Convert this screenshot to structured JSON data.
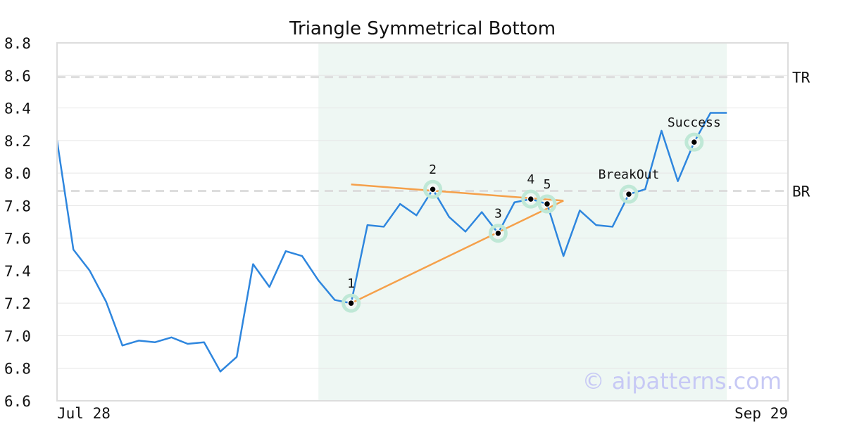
{
  "chart_data": {
    "type": "line",
    "title": "Triangle Symmetrical Bottom",
    "xlabel": "",
    "ylabel": "",
    "x_start_label": "Jul 28",
    "x_end_label": "Sep 29",
    "ylim": [
      6.6,
      8.8
    ],
    "yticks": [
      "6.6",
      "6.8",
      "7.0",
      "7.2",
      "7.4",
      "7.6",
      "7.8",
      "8.0",
      "8.2",
      "8.4",
      "8.6",
      "8.8"
    ],
    "grid": true,
    "series": [
      {
        "color": "#2e86de",
        "values": [
          8.2,
          7.53,
          7.4,
          7.21,
          6.94,
          6.97,
          6.96,
          6.99,
          6.95,
          6.96,
          6.78,
          6.87,
          7.44,
          7.3,
          7.52,
          7.49,
          7.34,
          7.22,
          7.2,
          7.68,
          7.67,
          7.81,
          7.74,
          7.9,
          7.73,
          7.64,
          7.76,
          7.63,
          7.82,
          7.84,
          7.81,
          7.49,
          7.77,
          7.68,
          7.67,
          7.87,
          7.9,
          8.26,
          7.95,
          8.19,
          8.37,
          8.37
        ]
      }
    ],
    "pattern_region": {
      "start_index": 16,
      "end_index": 41,
      "color": "#eef7f3"
    },
    "levels": [
      {
        "label": "TR",
        "value": 8.59
      },
      {
        "label": "BR",
        "value": 7.89
      }
    ],
    "trendlines": [
      {
        "from": [
          18,
          7.93
        ],
        "to": [
          31,
          7.83
        ],
        "color": "#f5a04a"
      },
      {
        "from": [
          18,
          7.2
        ],
        "to": [
          31,
          7.83
        ],
        "color": "#f5a04a"
      }
    ],
    "points": [
      {
        "label": "1",
        "index": 18,
        "value": 7.2
      },
      {
        "label": "2",
        "index": 23,
        "value": 7.9
      },
      {
        "label": "3",
        "index": 27,
        "value": 7.63
      },
      {
        "label": "4",
        "index": 29,
        "value": 7.84
      },
      {
        "label": "5",
        "index": 30,
        "value": 7.81
      },
      {
        "label": "BreakOut",
        "index": 35,
        "value": 7.87
      },
      {
        "label": "Success",
        "index": 39,
        "value": 8.19
      }
    ],
    "watermark": "© aipatterns.com"
  }
}
